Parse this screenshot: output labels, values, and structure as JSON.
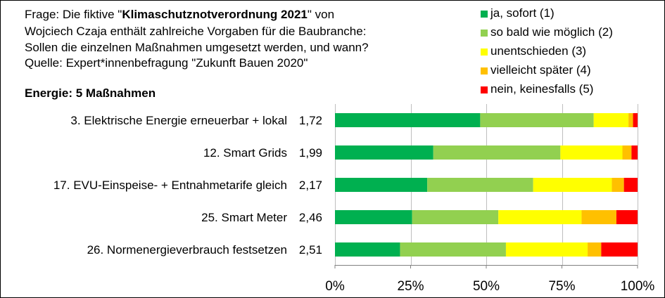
{
  "question": {
    "line1_pre": "Frage: Die fiktive \"",
    "line1_bold": "Klimaschutznotverordnung 2021",
    "line1_post": "\" von",
    "line2": "Wojciech Czaja enthält zahlreiche Vorgaben für die Baubranche:",
    "line3": "Sollen die einzelnen Maßnahmen umgesetzt werden, und wann?",
    "line4": "Quelle: Expert*innenbefragung \"Zukunft Bauen 2020\""
  },
  "colors": {
    "ja_sofort": "#00b050",
    "so_bald": "#92d050",
    "unentschieden": "#ffff00",
    "vielleicht": "#ffc000",
    "nein": "#ff0000"
  },
  "chart_data": {
    "type": "bar",
    "orientation": "horizontal",
    "stacked": "100%",
    "title": "Energie: 5 Maßnahmen",
    "categories": [
      "3. Elektrische Energie erneuerbar + lokal",
      "12. Smart Grids",
      "17. EVU-Einspeise- + Entnahmetarife gleich",
      "25. Smart Meter",
      "26. Normenergieverbrauch festsetzen"
    ],
    "averages": [
      "1,72",
      "1,99",
      "2,17",
      "2,46",
      "2,51"
    ],
    "series": [
      {
        "name": "ja, sofort (1)",
        "color": "#00b050",
        "values": [
          48,
          32.5,
          30.5,
          25.5,
          21.5
        ]
      },
      {
        "name": "so bald wie möglich (2)",
        "color": "#92d050",
        "values": [
          37.5,
          42,
          35,
          28.5,
          35
        ]
      },
      {
        "name": "unentschieden (3)",
        "color": "#ffff00",
        "values": [
          11.5,
          20.5,
          26,
          27.5,
          27
        ]
      },
      {
        "name": "vielleicht später (4)",
        "color": "#ffc000",
        "values": [
          1.5,
          3,
          4,
          11.5,
          4.5
        ]
      },
      {
        "name": "nein, keinesfalls (5)",
        "color": "#ff0000",
        "values": [
          1.5,
          2,
          4.5,
          7,
          12
        ]
      }
    ],
    "xlim": [
      0,
      100
    ],
    "xticks": [
      "0%",
      "25%",
      "50%",
      "75%",
      "100%"
    ],
    "grid": true,
    "legend_position": "top-right"
  }
}
